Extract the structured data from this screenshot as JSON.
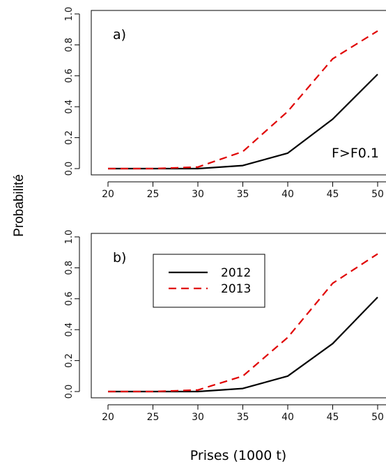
{
  "figure": {
    "ylabel": "Probabilité",
    "xlabel": "Prises (1000 t)"
  },
  "legend": {
    "entries": [
      {
        "label": "2012",
        "color": "#000000",
        "dash": "solid"
      },
      {
        "label": "2013",
        "color": "#e00000",
        "dash": "dashed"
      }
    ]
  },
  "chart_data": [
    {
      "type": "line",
      "panel_label": "a)",
      "annotation": "F>F0.1",
      "x": [
        20,
        25,
        30,
        35,
        40,
        45,
        50
      ],
      "xticks": [
        "20",
        "25",
        "30",
        "35",
        "40",
        "45",
        "50"
      ],
      "yticks": [
        "0.0",
        "0.2",
        "0.4",
        "0.6",
        "0.8",
        "1.0"
      ],
      "xlim": [
        20,
        50
      ],
      "ylim": [
        0,
        1
      ],
      "series": [
        {
          "name": "2012",
          "color": "#000000",
          "dash": "solid",
          "values": [
            0.0,
            0.0,
            0.0,
            0.02,
            0.1,
            0.32,
            0.61
          ]
        },
        {
          "name": "2013",
          "color": "#e00000",
          "dash": "dashed",
          "values": [
            0.0,
            0.0,
            0.01,
            0.11,
            0.37,
            0.71,
            0.89
          ]
        }
      ],
      "legend": "none"
    },
    {
      "type": "line",
      "panel_label": "b)",
      "annotation": "",
      "x": [
        20,
        25,
        30,
        35,
        40,
        45,
        50
      ],
      "xticks": [
        "20",
        "25",
        "30",
        "35",
        "40",
        "45",
        "50"
      ],
      "yticks": [
        "0.0",
        "0.2",
        "0.4",
        "0.6",
        "0.8",
        "1.0"
      ],
      "xlim": [
        20,
        50
      ],
      "ylim": [
        0,
        1
      ],
      "series": [
        {
          "name": "2012",
          "color": "#000000",
          "dash": "solid",
          "values": [
            0.0,
            0.0,
            0.0,
            0.02,
            0.1,
            0.31,
            0.61
          ]
        },
        {
          "name": "2013",
          "color": "#e00000",
          "dash": "dashed",
          "values": [
            0.0,
            0.0,
            0.01,
            0.1,
            0.35,
            0.7,
            0.89
          ]
        }
      ],
      "legend": "top-left"
    }
  ]
}
